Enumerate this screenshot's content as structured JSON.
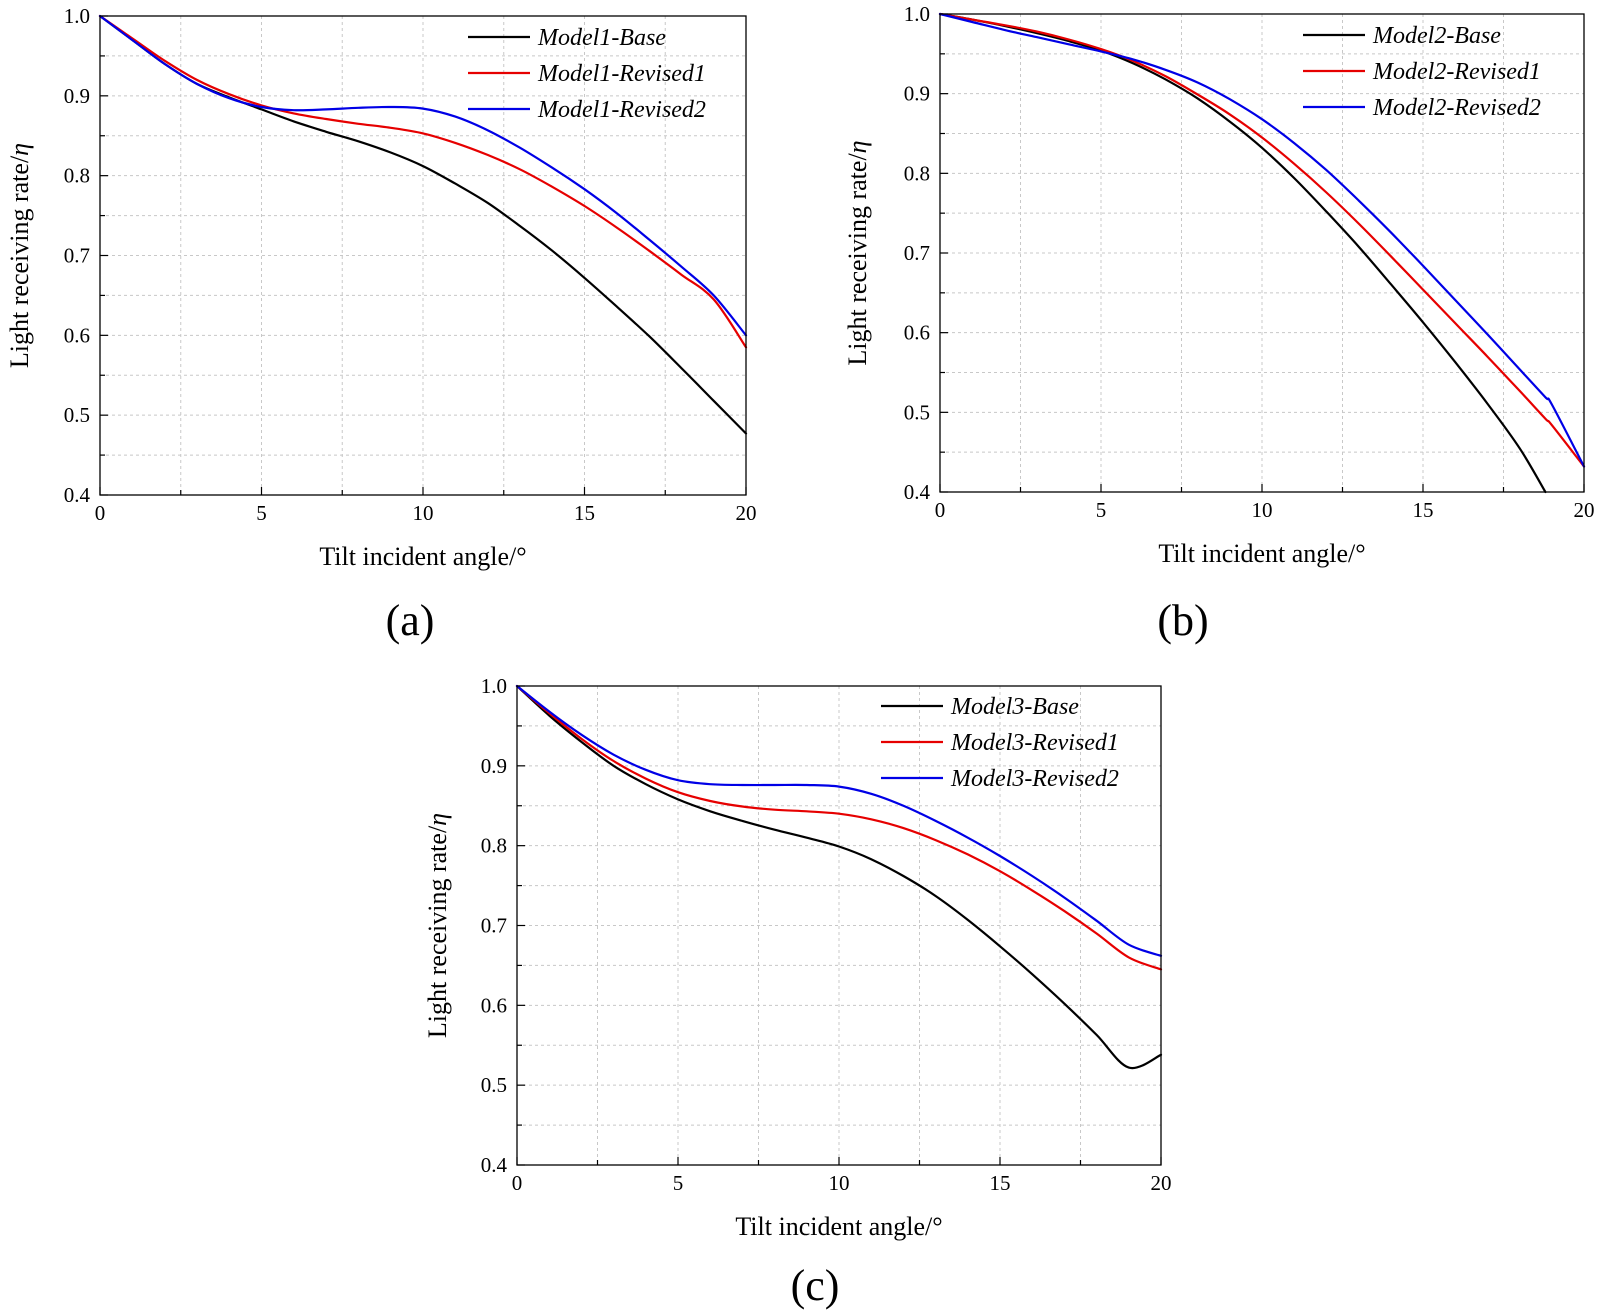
{
  "colors": {
    "black": "#000000",
    "red": "#e60000",
    "blue": "#0000e6"
  },
  "chart_data": [
    {
      "type": "line",
      "panel_label": "(a)",
      "xlabel": "Tilt incident angle/°",
      "ylabel_text": "Light receiving rate/",
      "ylabel_symbol": "η",
      "xlim": [
        0,
        20
      ],
      "ylim": [
        0.4,
        1.0
      ],
      "xticks": [
        "0",
        "5",
        "10",
        "15",
        "20"
      ],
      "yticks": [
        "0.4",
        "0.5",
        "0.6",
        "0.7",
        "0.8",
        "0.9",
        "1.0"
      ],
      "grid": true,
      "legend_position": "top-right",
      "x": [
        0,
        1,
        2,
        3,
        4,
        5,
        6,
        7,
        8,
        9,
        10,
        11,
        12,
        13,
        14,
        15,
        16,
        17,
        18,
        19,
        20
      ],
      "series": [
        {
          "name": "Model1-Base",
          "color": "#000000",
          "values": [
            1.0,
            0.97,
            0.94,
            0.915,
            0.898,
            0.883,
            0.868,
            0.855,
            0.843,
            0.829,
            0.812,
            0.79,
            0.766,
            0.737,
            0.706,
            0.672,
            0.636,
            0.599,
            0.559,
            0.518,
            0.477
          ]
        },
        {
          "name": "Model1-Revised1",
          "color": "#e60000",
          "values": [
            1.0,
            0.972,
            0.944,
            0.92,
            0.902,
            0.888,
            0.878,
            0.871,
            0.865,
            0.86,
            0.853,
            0.841,
            0.826,
            0.808,
            0.786,
            0.762,
            0.735,
            0.706,
            0.676,
            0.645,
            0.585
          ]
        },
        {
          "name": "Model1-Revised2",
          "color": "#0000e6",
          "values": [
            1.0,
            0.97,
            0.94,
            0.915,
            0.897,
            0.886,
            0.882,
            0.883,
            0.885,
            0.886,
            0.884,
            0.874,
            0.857,
            0.835,
            0.81,
            0.783,
            0.753,
            0.72,
            0.686,
            0.65,
            0.6
          ]
        }
      ]
    },
    {
      "type": "line",
      "panel_label": "(b)",
      "xlabel": "Tilt incident angle/°",
      "ylabel_text": "Light receiving rate/",
      "ylabel_symbol": "η",
      "xlim": [
        0,
        20
      ],
      "ylim": [
        0.4,
        1.0
      ],
      "xticks": [
        "0",
        "5",
        "10",
        "15",
        "20"
      ],
      "yticks": [
        "0.4",
        "0.5",
        "0.6",
        "0.7",
        "0.8",
        "0.9",
        "1.0"
      ],
      "grid": true,
      "legend_position": "top-right",
      "x": [
        0,
        1,
        2,
        3,
        4,
        5,
        6,
        7,
        8,
        9,
        10,
        11,
        12,
        13,
        14,
        15,
        16,
        17,
        18,
        18.8
      ],
      "series": [
        {
          "name": "Model2-Base",
          "color": "#000000",
          "values": [
            1.0,
            0.993,
            0.985,
            0.976,
            0.966,
            0.954,
            0.938,
            0.918,
            0.894,
            0.865,
            0.832,
            0.794,
            0.752,
            0.708,
            0.661,
            0.613,
            0.563,
            0.511,
            0.455,
            0.4
          ]
        },
        {
          "name": "Model2-Revised1",
          "color": "#e60000",
          "values": [
            1.0,
            0.993,
            0.986,
            0.978,
            0.968,
            0.956,
            0.941,
            0.922,
            0.899,
            0.874,
            0.845,
            0.812,
            0.776,
            0.737,
            0.696,
            0.654,
            0.612,
            0.57,
            0.527,
            0.492
          ]
        },
        {
          "name": "Model2-Revised2",
          "color": "#0000e6",
          "values": [
            1.0,
            0.99,
            0.98,
            0.971,
            0.962,
            0.953,
            0.943,
            0.93,
            0.914,
            0.893,
            0.868,
            0.838,
            0.804,
            0.766,
            0.726,
            0.684,
            0.641,
            0.598,
            0.554,
            0.519
          ]
        }
      ],
      "series_tail_x": [
        19,
        20
      ],
      "series_tail": [
        {
          "name": "Model2-Revised1",
          "values": [
            0.484,
            0.432
          ]
        },
        {
          "name": "Model2-Revised2",
          "values": [
            0.51,
            0.432
          ]
        }
      ]
    },
    {
      "type": "line",
      "panel_label": "(c)",
      "xlabel": "Tilt incident angle/°",
      "ylabel_text": "Light receiving rate/",
      "ylabel_symbol": "η",
      "xlim": [
        0,
        20
      ],
      "ylim": [
        0.4,
        1.0
      ],
      "xticks": [
        "0",
        "5",
        "10",
        "15",
        "20"
      ],
      "yticks": [
        "0.4",
        "0.5",
        "0.6",
        "0.7",
        "0.8",
        "0.9",
        "1.0"
      ],
      "grid": true,
      "legend_position": "top-right",
      "x": [
        0,
        1,
        2,
        3,
        4,
        5,
        6,
        7,
        8,
        9,
        10,
        11,
        12,
        13,
        14,
        15,
        16,
        17,
        18,
        19,
        20
      ],
      "series": [
        {
          "name": "Model3-Base",
          "color": "#000000",
          "values": [
            1.0,
            0.963,
            0.93,
            0.9,
            0.877,
            0.858,
            0.843,
            0.831,
            0.82,
            0.81,
            0.799,
            0.783,
            0.762,
            0.737,
            0.707,
            0.674,
            0.639,
            0.602,
            0.563,
            0.522,
            0.538
          ]
        },
        {
          "name": "Model3-Revised1",
          "color": "#e60000",
          "values": [
            1.0,
            0.966,
            0.934,
            0.906,
            0.884,
            0.867,
            0.856,
            0.849,
            0.845,
            0.843,
            0.84,
            0.833,
            0.822,
            0.807,
            0.789,
            0.768,
            0.744,
            0.718,
            0.69,
            0.66,
            0.645
          ]
        },
        {
          "name": "Model3-Revised2",
          "color": "#0000e6",
          "values": [
            1.0,
            0.968,
            0.939,
            0.914,
            0.895,
            0.882,
            0.877,
            0.876,
            0.876,
            0.876,
            0.874,
            0.865,
            0.85,
            0.831,
            0.81,
            0.787,
            0.762,
            0.735,
            0.706,
            0.676,
            0.662
          ]
        }
      ]
    }
  ]
}
